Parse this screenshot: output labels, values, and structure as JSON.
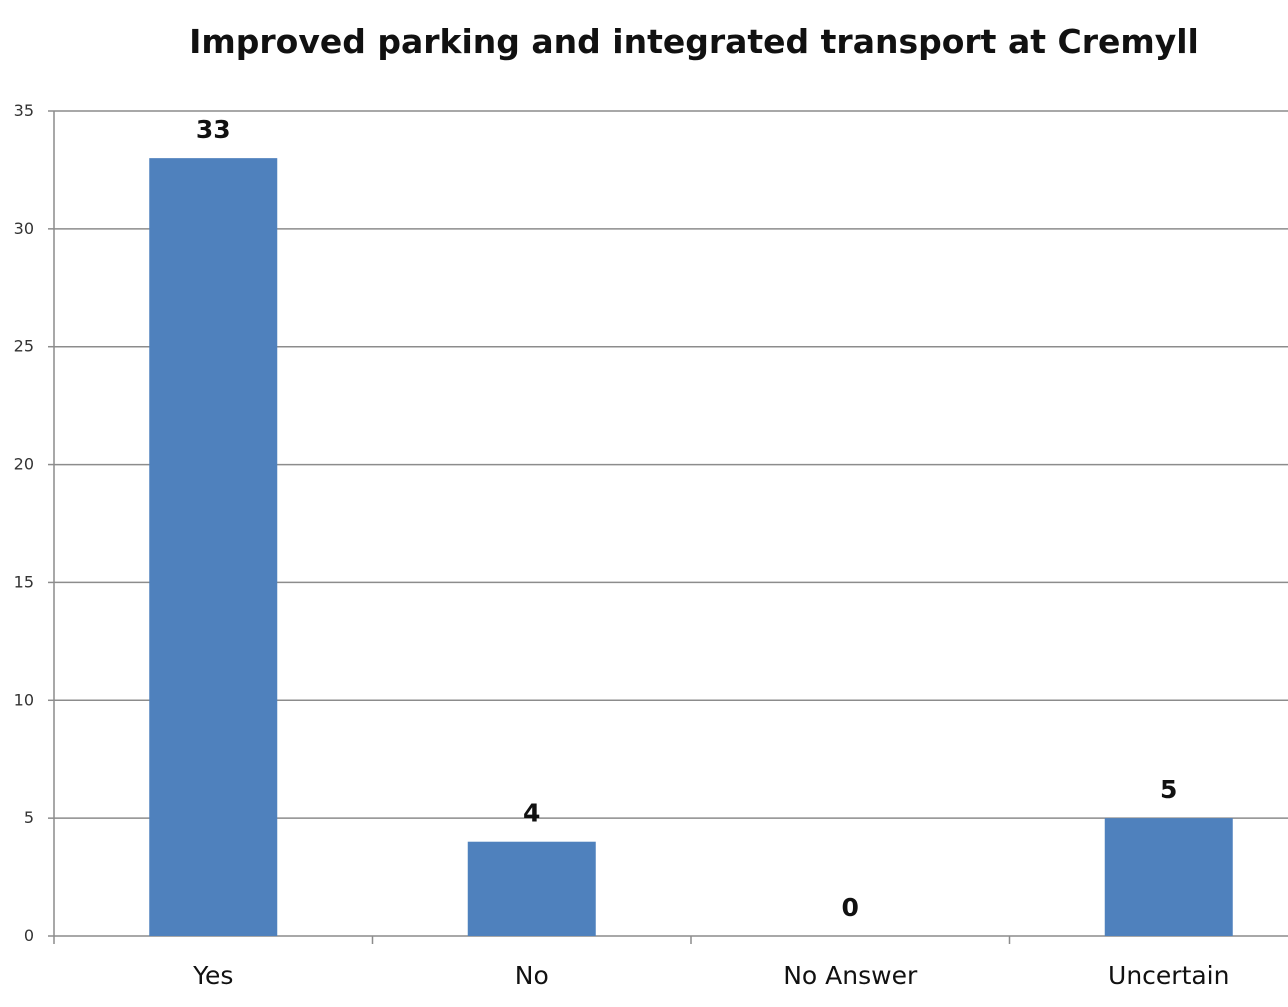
{
  "chart_data": {
    "type": "bar",
    "title": "Improved parking and integrated transport at Cremyll",
    "xlabel": "",
    "ylabel": "",
    "categories": [
      "Yes",
      "No",
      "No Answer",
      "Uncertain"
    ],
    "values": [
      33,
      4,
      0,
      5
    ],
    "data_labels": [
      "33",
      "4",
      "0",
      "5"
    ],
    "ylim": [
      0,
      35
    ],
    "yticks": [
      0,
      5,
      10,
      15,
      20,
      25,
      30,
      35
    ],
    "ytick_labels": [
      "0",
      "5",
      "10",
      "15",
      "20",
      "25",
      "30",
      "35"
    ],
    "grid": true,
    "legend": "none",
    "bar_color": "#4f81bd",
    "grid_color": "#8c8c8c"
  }
}
